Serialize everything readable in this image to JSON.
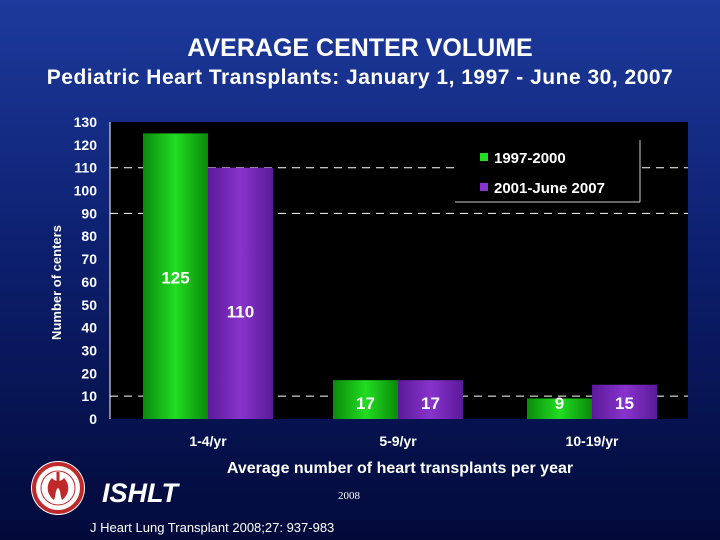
{
  "header": {
    "title": "AVERAGE CENTER VOLUME",
    "subtitle": "Pediatric Heart Transplants: January 1, 1997 - June 30, 2007"
  },
  "footer": {
    "org": "ISHLT",
    "year": "2008",
    "citation": "J Heart Lung Transplant 2008;27: 937-983"
  },
  "colors": {
    "series1": "#22dd22",
    "series2": "#8833cc",
    "gridline": "#ffffff",
    "seal": "#c0282a"
  },
  "chart_data": {
    "type": "bar",
    "title": "",
    "xlabel": "Average number of heart transplants per year",
    "ylabel": "Number of centers",
    "categories": [
      "1-4/yr",
      "5-9/yr",
      "10-19/yr"
    ],
    "series": [
      {
        "name": "1997-2000",
        "values": [
          125,
          17,
          9
        ]
      },
      {
        "name": "2001-June 2007",
        "values": [
          110,
          17,
          15
        ]
      }
    ],
    "ylim": [
      0,
      130
    ],
    "yticks": [
      0,
      10,
      20,
      30,
      40,
      50,
      60,
      70,
      80,
      90,
      100,
      110,
      120,
      130
    ],
    "dashed_gridlines": [
      10,
      90,
      110
    ],
    "legend_position": "top-right"
  }
}
